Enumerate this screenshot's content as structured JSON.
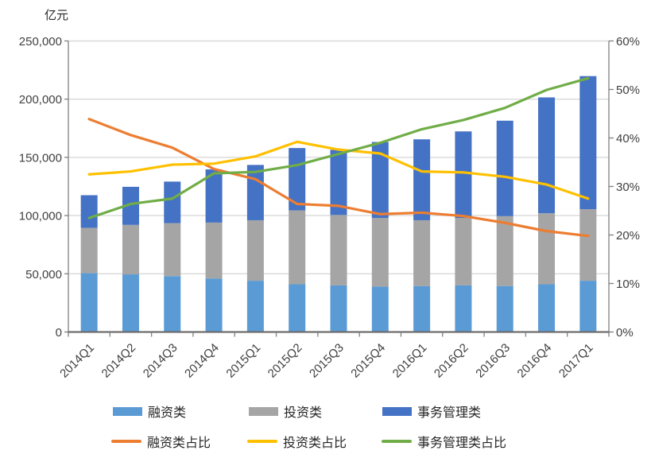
{
  "unit_label": "亿元",
  "colors": {
    "bar_financing": "#5B9BD5",
    "bar_investment": "#A5A5A5",
    "bar_management": "#4472C4",
    "line_financing_pct": "#ED7D31",
    "line_investment_pct": "#FFC000",
    "line_management_pct": "#70AD47",
    "gridline": "#D9D9D9",
    "axis": "#808080",
    "text": "#404040"
  },
  "chart_data": {
    "type": "bar",
    "subtype": "stacked-bars-with-percentage-lines",
    "title": "",
    "xlabel": "",
    "ylabel_left": "亿元",
    "ylabel_right": "",
    "grid": true,
    "legend_position": "bottom",
    "categories": [
      "2014Q1",
      "2014Q2",
      "2014Q3",
      "2014Q4",
      "2015Q1",
      "2015Q2",
      "2015Q3",
      "2015Q4",
      "2016Q1",
      "2016Q2",
      "2016Q3",
      "2016Q4",
      "2017Q1"
    ],
    "bar_series": [
      {
        "name": "融资类",
        "color": "#5B9BD5",
        "values": [
          50500,
          49500,
          48000,
          46000,
          44000,
          41000,
          40000,
          39000,
          39500,
          40000,
          39500,
          41000,
          44000
        ]
      },
      {
        "name": "投资类",
        "color": "#A5A5A5",
        "values": [
          39000,
          42500,
          45500,
          48000,
          52000,
          63500,
          60500,
          59000,
          56500,
          58000,
          60000,
          61000,
          61500
        ]
      },
      {
        "name": "事务管理类",
        "color": "#4472C4",
        "values": [
          28000,
          32700,
          35700,
          45700,
          47500,
          53500,
          56000,
          65200,
          69500,
          74300,
          82000,
          99500,
          114300
        ]
      }
    ],
    "line_series": [
      {
        "name": "融资类占比",
        "color": "#ED7D31",
        "axis": "right",
        "values_pct": [
          43.9,
          40.6,
          38.0,
          33.6,
          31.5,
          26.4,
          26.0,
          24.3,
          24.6,
          23.9,
          22.5,
          20.8,
          19.8
        ]
      },
      {
        "name": "投资类占比",
        "color": "#FFC000",
        "axis": "right",
        "values_pct": [
          32.5,
          33.1,
          34.5,
          34.7,
          36.2,
          39.2,
          37.6,
          36.8,
          33.1,
          32.9,
          32.0,
          30.4,
          27.5
        ]
      },
      {
        "name": "事务管理类占比",
        "color": "#70AD47",
        "axis": "right",
        "values_pct": [
          23.5,
          26.4,
          27.5,
          32.7,
          33.0,
          34.4,
          36.7,
          39.0,
          41.8,
          43.7,
          46.2,
          49.9,
          52.3
        ]
      }
    ],
    "left_axis": {
      "min": 0,
      "max": 250000,
      "step": 50000,
      "tick_labels": [
        "0",
        "50,000",
        "100,000",
        "150,000",
        "200,000",
        "250,000"
      ],
      "unit": "亿元"
    },
    "right_axis": {
      "min": 0,
      "max": 60,
      "step": 10,
      "tick_labels": [
        "0%",
        "10%",
        "20%",
        "30%",
        "40%",
        "50%",
        "60%"
      ]
    }
  }
}
